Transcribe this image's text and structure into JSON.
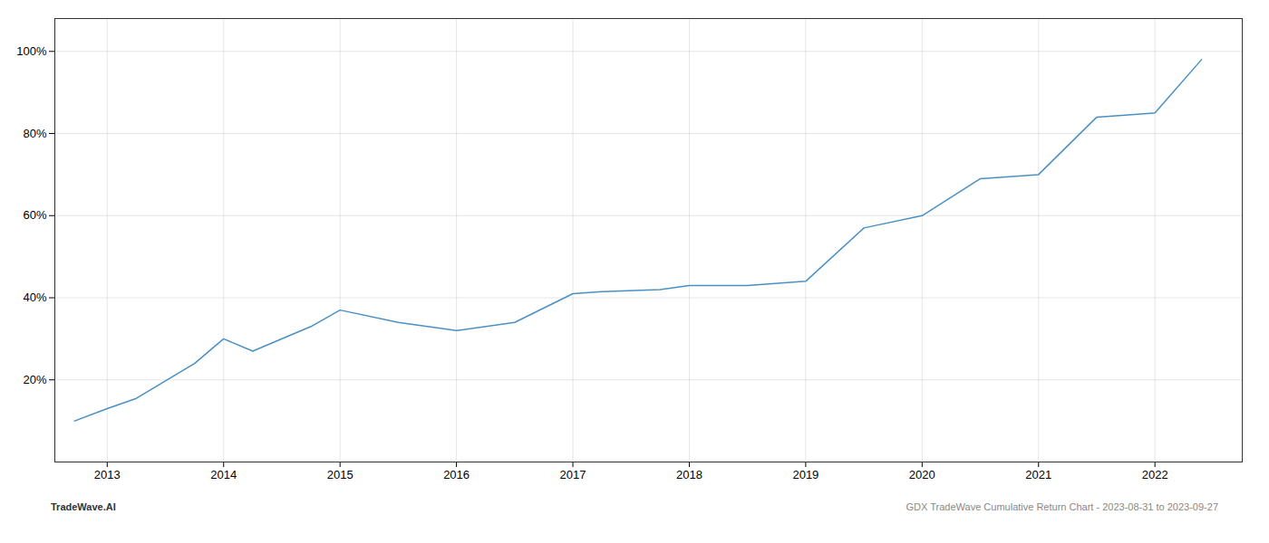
{
  "chart_data": {
    "type": "line",
    "x": [
      2012.72,
      2013.0,
      2013.25,
      2013.75,
      2014.0,
      2014.25,
      2014.75,
      2015.0,
      2015.5,
      2016.0,
      2016.5,
      2017.0,
      2017.25,
      2017.75,
      2018.0,
      2018.5,
      2019.0,
      2019.5,
      2020.0,
      2020.5,
      2021.0,
      2021.5,
      2022.0,
      2022.4
    ],
    "values": [
      0.1,
      0.13,
      0.155,
      0.24,
      0.3,
      0.27,
      0.33,
      0.37,
      0.34,
      0.32,
      0.34,
      0.41,
      0.415,
      0.42,
      0.43,
      0.43,
      0.44,
      0.57,
      0.6,
      0.69,
      0.7,
      0.84,
      0.85,
      0.98
    ],
    "color": "#4a90c4",
    "xlim": [
      2012.55,
      2022.75
    ],
    "xticks": [
      2013,
      2014,
      2015,
      2016,
      2017,
      2018,
      2019,
      2020,
      2021,
      2022
    ],
    "ylim": [
      0.0,
      1.08
    ],
    "yticks": [
      {
        "value": 0.2,
        "label": "20%"
      },
      {
        "value": 0.4,
        "label": "40%"
      },
      {
        "value": 0.6,
        "label": "60%"
      },
      {
        "value": 0.8,
        "label": "80%"
      },
      {
        "value": 1.0,
        "label": "100%"
      }
    ],
    "grid": true,
    "annotations": [
      "TradeWave.AI",
      "GDX TradeWave Cumulative Return Chart - 2023-08-31 to 2023-09-27"
    ]
  }
}
